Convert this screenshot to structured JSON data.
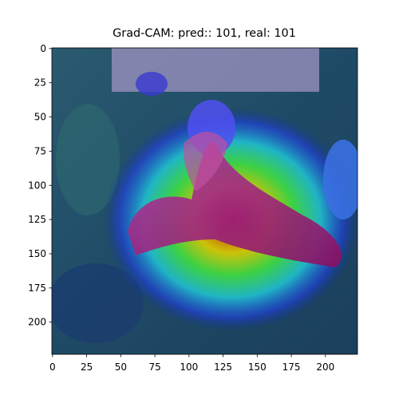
{
  "chart_data": {
    "type": "image",
    "title": "Grad-CAM: pred:: 101, real: 101",
    "xlim": [
      -0.5,
      223.5
    ],
    "ylim": [
      223.5,
      -0.5
    ],
    "xticks": [
      0,
      25,
      50,
      75,
      100,
      125,
      150,
      175,
      200
    ],
    "yticks": [
      0,
      25,
      50,
      75,
      100,
      125,
      150,
      175,
      200
    ]
  }
}
